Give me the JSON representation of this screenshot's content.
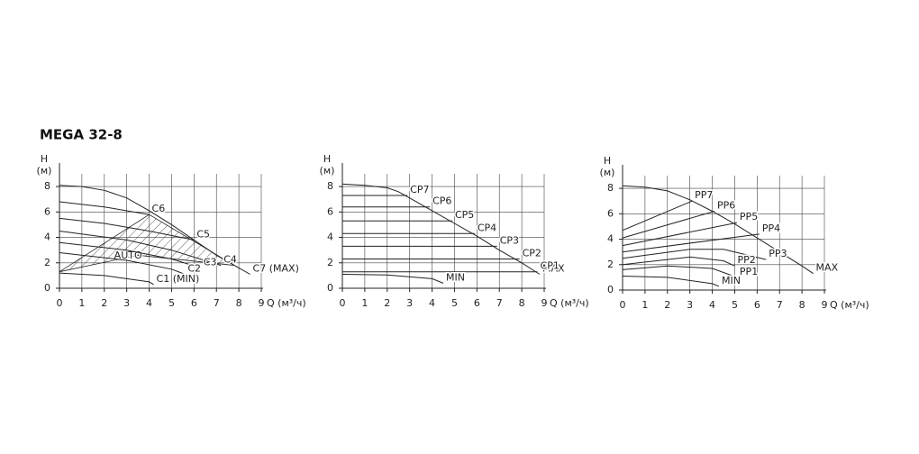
{
  "chart_data": [
    {
      "type": "line",
      "title": "MEGA 32-8",
      "y_label": "H",
      "y_unit": "(м)",
      "x_label": "Q (м³/ч)",
      "xlim": [
        0,
        9
      ],
      "ylim": [
        0,
        9
      ],
      "xticks": [
        0,
        1,
        2,
        3,
        4,
        5,
        6,
        7,
        8,
        9
      ],
      "yticks": [
        0,
        2,
        4,
        6,
        8
      ],
      "grid": true,
      "series": [
        {
          "name": "AUTO",
          "color": "#222",
          "fill": "hatch",
          "x": [
            0,
            4,
            7.8,
            3.5,
            0
          ],
          "values": [
            1.3,
            5.8,
            1.8,
            2.6,
            1.3
          ]
        },
        {
          "name": "C7 (MAX)",
          "color": "#222",
          "x": [
            0,
            1,
            2,
            3,
            4,
            5,
            6,
            7,
            8,
            8.5
          ],
          "values": [
            8.1,
            8.0,
            7.7,
            7.1,
            6.1,
            5.0,
            3.8,
            2.6,
            1.6,
            1.1
          ]
        },
        {
          "name": "C6",
          "color": "#222",
          "x": [
            0,
            2,
            4
          ],
          "values": [
            6.8,
            6.4,
            5.8
          ]
        },
        {
          "name": "C5",
          "color": "#222",
          "x": [
            0,
            2,
            4,
            6
          ],
          "values": [
            5.5,
            5.1,
            4.5,
            3.8
          ]
        },
        {
          "name": "C4",
          "color": "#222",
          "x": [
            0,
            3,
            5,
            7.2
          ],
          "values": [
            4.5,
            3.8,
            3.0,
            1.8
          ]
        },
        {
          "name": "C3",
          "color": "#222",
          "x": [
            0,
            3,
            5,
            6.3
          ],
          "values": [
            3.6,
            3.0,
            2.3,
            1.6
          ]
        },
        {
          "name": "C2",
          "color": "#222",
          "x": [
            0,
            3,
            5,
            5.6
          ],
          "values": [
            2.8,
            2.2,
            1.5,
            1.1
          ]
        },
        {
          "name": "C1 (MIN)",
          "color": "#222",
          "x": [
            0,
            2,
            4,
            4.2
          ],
          "values": [
            1.2,
            1.0,
            0.5,
            0.3
          ]
        }
      ]
    },
    {
      "type": "line",
      "y_label": "H",
      "y_unit": "(м)",
      "x_label": "Q (м³/ч)",
      "xlim": [
        0,
        9
      ],
      "ylim": [
        0,
        9
      ],
      "xticks": [
        0,
        1,
        2,
        3,
        4,
        5,
        6,
        7,
        8,
        9
      ],
      "yticks": [
        0,
        2,
        4,
        6,
        8
      ],
      "grid": true,
      "series": [
        {
          "name": "MAX",
          "color": "#222",
          "x": [
            0,
            1,
            2,
            2.5,
            3,
            4,
            5,
            6,
            7,
            8,
            8.8
          ],
          "values": [
            8.2,
            8.1,
            7.9,
            7.6,
            7.1,
            6.1,
            5.1,
            4.1,
            3.0,
            2.0,
            1.1
          ]
        },
        {
          "name": "CP7",
          "color": "#222",
          "x": [
            0,
            2.9
          ],
          "values": [
            7.3,
            7.3
          ]
        },
        {
          "name": "CP6",
          "color": "#222",
          "x": [
            0,
            3.9
          ],
          "values": [
            6.4,
            6.4
          ]
        },
        {
          "name": "CP5",
          "color": "#222",
          "x": [
            0,
            4.9
          ],
          "values": [
            5.3,
            5.3
          ]
        },
        {
          "name": "CP4",
          "color": "#222",
          "x": [
            0,
            5.9
          ],
          "values": [
            4.3,
            4.3
          ]
        },
        {
          "name": "CP3",
          "color": "#222",
          "x": [
            0,
            6.9
          ],
          "values": [
            3.3,
            3.3
          ]
        },
        {
          "name": "CP2",
          "color": "#222",
          "x": [
            0,
            7.9
          ],
          "values": [
            2.3,
            2.3
          ]
        },
        {
          "name": "CP1",
          "color": "#222",
          "x": [
            0,
            8.7
          ],
          "values": [
            1.3,
            1.3
          ]
        },
        {
          "name": "MIN",
          "color": "#222",
          "x": [
            0,
            2,
            4,
            4.5
          ],
          "values": [
            1.1,
            1.05,
            0.75,
            0.4
          ]
        }
      ]
    },
    {
      "type": "line",
      "y_label": "H",
      "y_unit": "(м)",
      "x_label": "Q (м³/ч)",
      "xlim": [
        0,
        9
      ],
      "ylim": [
        0,
        9
      ],
      "xticks": [
        0,
        1,
        2,
        3,
        4,
        5,
        6,
        7,
        8,
        9
      ],
      "yticks": [
        0,
        2,
        4,
        6,
        8
      ],
      "grid": true,
      "series": [
        {
          "name": "MAX",
          "color": "#222",
          "x": [
            0,
            1,
            2,
            3,
            4,
            5,
            6,
            7,
            8,
            8.5
          ],
          "values": [
            8.2,
            8.1,
            7.8,
            7.1,
            6.2,
            5.2,
            4.1,
            3.0,
            1.9,
            1.3
          ]
        },
        {
          "name": "PP7",
          "color": "#222",
          "x": [
            0,
            3.1
          ],
          "values": [
            4.7,
            7.0
          ]
        },
        {
          "name": "PP6",
          "color": "#222",
          "x": [
            0,
            4.1
          ],
          "values": [
            4.1,
            6.2
          ]
        },
        {
          "name": "PP5",
          "color": "#222",
          "x": [
            0,
            5.1
          ],
          "values": [
            3.5,
            5.3
          ]
        },
        {
          "name": "PP4",
          "color": "#222",
          "x": [
            0,
            6.1
          ],
          "values": [
            3.0,
            4.4
          ]
        },
        {
          "name": "PP3",
          "color": "#222",
          "x": [
            0,
            3,
            4.5,
            6.4
          ],
          "values": [
            2.5,
            3.2,
            3.2,
            2.4
          ]
        },
        {
          "name": "PP2",
          "color": "#222",
          "x": [
            0,
            3,
            4.5,
            5
          ],
          "values": [
            2.0,
            2.6,
            2.3,
            1.9
          ]
        },
        {
          "name": "PP1",
          "color": "#222",
          "x": [
            0,
            2,
            4,
            5.1
          ],
          "values": [
            1.6,
            1.9,
            1.7,
            1.0
          ]
        },
        {
          "name": "MIN",
          "color": "#222",
          "x": [
            0,
            2,
            4,
            4.3
          ],
          "values": [
            1.1,
            1.0,
            0.5,
            0.3
          ]
        }
      ]
    }
  ]
}
